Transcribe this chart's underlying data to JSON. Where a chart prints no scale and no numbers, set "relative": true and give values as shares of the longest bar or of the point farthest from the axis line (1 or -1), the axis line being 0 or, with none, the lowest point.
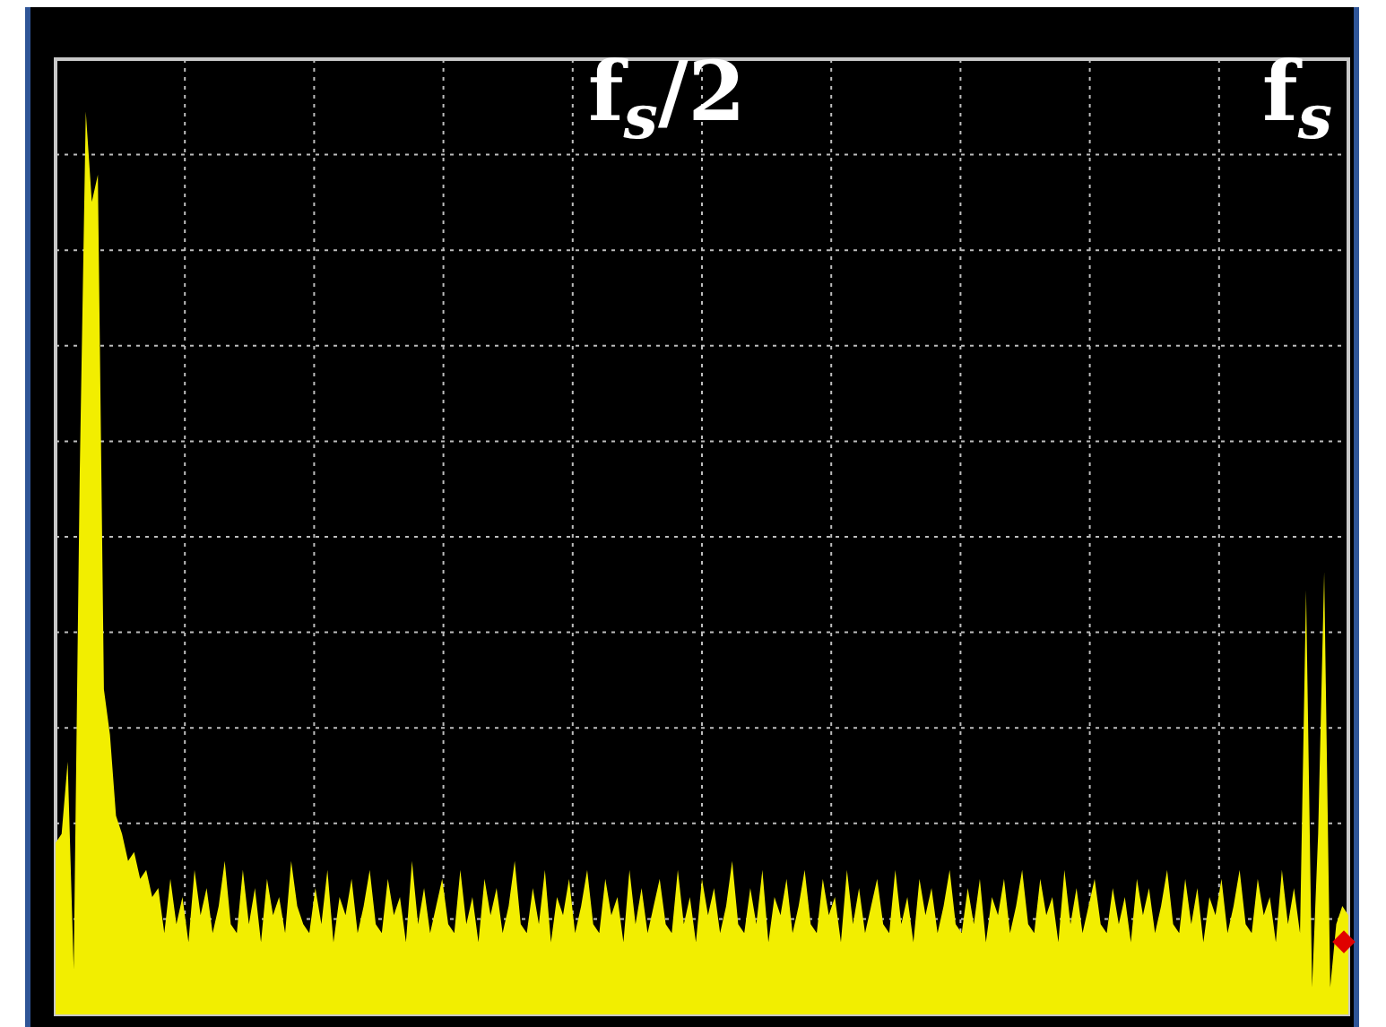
{
  "chart_data": {
    "type": "area",
    "relative": true,
    "grid": true,
    "annotations": [
      "f$_{s}$/2",
      "f$_{s}$"
    ],
    "categories": [
      null,
      null,
      null,
      null,
      null,
      null,
      null,
      null,
      null,
      null,
      null,
      null,
      null,
      null,
      null,
      null,
      null,
      null,
      null,
      null,
      null,
      null,
      null,
      null,
      null,
      null,
      null,
      null,
      null,
      null,
      null,
      null,
      null,
      null,
      null,
      null,
      null,
      null,
      null,
      null,
      null,
      null,
      null,
      null,
      null,
      null,
      null,
      null,
      null,
      null,
      null,
      null,
      null,
      null,
      null,
      null,
      null,
      null,
      null,
      null,
      null,
      null,
      null,
      null,
      null,
      null,
      null,
      null,
      null,
      null,
      null,
      null,
      null,
      null,
      null,
      null,
      null,
      null,
      null,
      null,
      null,
      null,
      null,
      null,
      null,
      null,
      null,
      null,
      null,
      null,
      null,
      null,
      null,
      null,
      null,
      null,
      null,
      null,
      null,
      null,
      null,
      null,
      null,
      null,
      null,
      null,
      null,
      null,
      null,
      null,
      null,
      null,
      null,
      null,
      null,
      null,
      null,
      null,
      null,
      null,
      null,
      null,
      null,
      null,
      null,
      null,
      null,
      null,
      null,
      null,
      null,
      null,
      null,
      null,
      null,
      null,
      null,
      null,
      null,
      null,
      null,
      null,
      null,
      null,
      null,
      null,
      null,
      null,
      null,
      null,
      null,
      null,
      null,
      null,
      null,
      null,
      null,
      null,
      null,
      null,
      null,
      null,
      null,
      null,
      null,
      null,
      null,
      null,
      null,
      null,
      null,
      null,
      null,
      null,
      null,
      null,
      null,
      null,
      null,
      null,
      null,
      null,
      null,
      null,
      null,
      null,
      null,
      null,
      null,
      null,
      null,
      null,
      null,
      null,
      null,
      null,
      null,
      null,
      null,
      null,
      null,
      null,
      null,
      null,
      null,
      null,
      null,
      null,
      null,
      null,
      null,
      null,
      null,
      null,
      null
    ],
    "series": [
      {
        "color": "#f2ee00",
        "values": [
          0.19,
          0.2,
          0.28,
          0.05,
          0.6,
          1.0,
          0.9,
          0.93,
          0.36,
          0.31,
          0.22,
          0.2,
          0.17,
          0.18,
          0.15,
          0.16,
          0.13,
          0.14,
          0.09,
          0.15,
          0.1,
          0.13,
          0.08,
          0.16,
          0.11,
          0.14,
          0.09,
          0.12,
          0.17,
          0.1,
          0.09,
          0.16,
          0.1,
          0.14,
          0.08,
          0.15,
          0.11,
          0.13,
          0.09,
          0.17,
          0.12,
          0.1,
          0.09,
          0.14,
          0.1,
          0.16,
          0.08,
          0.13,
          0.11,
          0.15,
          0.09,
          0.12,
          0.16,
          0.1,
          0.09,
          0.15,
          0.11,
          0.13,
          0.08,
          0.17,
          0.1,
          0.14,
          0.09,
          0.12,
          0.15,
          0.1,
          0.09,
          0.16,
          0.1,
          0.13,
          0.08,
          0.15,
          0.11,
          0.14,
          0.09,
          0.12,
          0.17,
          0.1,
          0.09,
          0.14,
          0.1,
          0.16,
          0.08,
          0.13,
          0.11,
          0.15,
          0.09,
          0.12,
          0.16,
          0.1,
          0.09,
          0.15,
          0.11,
          0.13,
          0.08,
          0.16,
          0.1,
          0.14,
          0.09,
          0.12,
          0.15,
          0.1,
          0.09,
          0.16,
          0.1,
          0.13,
          0.08,
          0.15,
          0.11,
          0.14,
          0.09,
          0.12,
          0.17,
          0.1,
          0.09,
          0.14,
          0.1,
          0.16,
          0.08,
          0.13,
          0.11,
          0.15,
          0.09,
          0.12,
          0.16,
          0.1,
          0.09,
          0.15,
          0.11,
          0.13,
          0.08,
          0.16,
          0.1,
          0.14,
          0.09,
          0.12,
          0.15,
          0.1,
          0.09,
          0.16,
          0.1,
          0.13,
          0.08,
          0.15,
          0.11,
          0.14,
          0.09,
          0.12,
          0.16,
          0.1,
          0.09,
          0.14,
          0.1,
          0.15,
          0.08,
          0.13,
          0.11,
          0.15,
          0.09,
          0.12,
          0.16,
          0.1,
          0.09,
          0.15,
          0.11,
          0.13,
          0.08,
          0.16,
          0.1,
          0.14,
          0.09,
          0.12,
          0.15,
          0.1,
          0.09,
          0.14,
          0.1,
          0.13,
          0.08,
          0.15,
          0.11,
          0.14,
          0.09,
          0.12,
          0.16,
          0.1,
          0.09,
          0.15,
          0.1,
          0.14,
          0.08,
          0.13,
          0.11,
          0.15,
          0.09,
          0.12,
          0.16,
          0.1,
          0.09,
          0.15,
          0.11,
          0.13,
          0.08,
          0.16,
          0.1,
          0.14,
          0.09,
          0.47,
          0.03,
          0.2,
          0.49,
          0.03,
          0.1,
          0.12,
          0.11
        ]
      }
    ]
  }
}
